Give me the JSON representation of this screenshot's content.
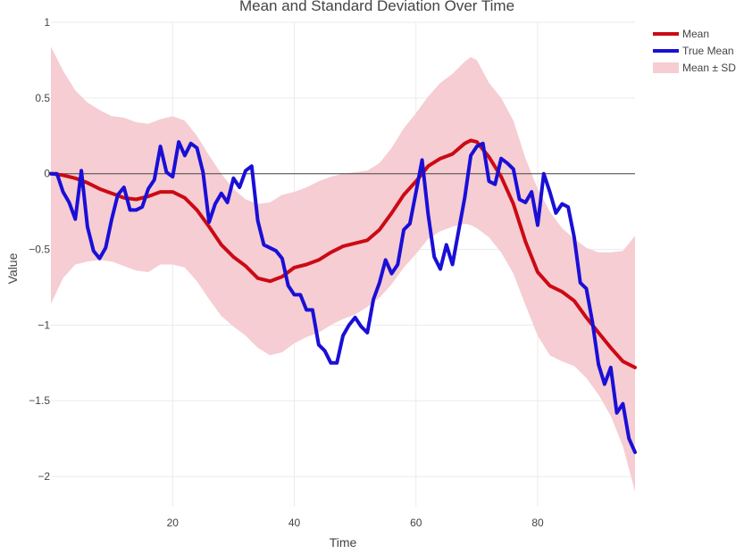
{
  "chart_data": {
    "type": "line",
    "title": "Mean and Standard Deviation Over Time",
    "xlabel": "Time",
    "ylabel": "Value",
    "xlim": [
      0,
      96
    ],
    "ylim": [
      -2.2,
      1.0
    ],
    "xticks": [
      20,
      40,
      60,
      80
    ],
    "yticks": [
      1,
      0.5,
      0,
      -0.5,
      -1,
      -1.5,
      -2
    ],
    "ytick_labels": [
      "1",
      "0.5",
      "0",
      "−0.5",
      "−1",
      "−1.5",
      "−2"
    ],
    "grid": true,
    "zero_line": true,
    "legend_position": "top-right",
    "colors": {
      "mean": "#cc0a14",
      "true_mean": "#1a0fd6",
      "band": "#f5cdd3",
      "grid": "#ebebeb",
      "text": "#444444"
    },
    "series": [
      {
        "name": "Mean",
        "x": [
          0,
          2,
          4,
          6,
          8,
          10,
          12,
          14,
          16,
          18,
          20,
          22,
          24,
          26,
          28,
          30,
          32,
          34,
          36,
          38,
          40,
          42,
          44,
          46,
          48,
          50,
          52,
          54,
          56,
          58,
          60,
          62,
          64,
          66,
          68,
          69,
          70,
          72,
          74,
          76,
          78,
          80,
          82,
          84,
          86,
          88,
          90,
          92,
          94,
          96
        ],
        "values": [
          0,
          -0.01,
          -0.03,
          -0.06,
          -0.1,
          -0.13,
          -0.16,
          -0.17,
          -0.15,
          -0.12,
          -0.12,
          -0.16,
          -0.24,
          -0.35,
          -0.47,
          -0.55,
          -0.61,
          -0.69,
          -0.71,
          -0.68,
          -0.62,
          -0.6,
          -0.57,
          -0.52,
          -0.48,
          -0.46,
          -0.44,
          -0.37,
          -0.26,
          -0.14,
          -0.05,
          0.05,
          0.1,
          0.13,
          0.2,
          0.22,
          0.21,
          0.11,
          -0.02,
          -0.2,
          -0.45,
          -0.65,
          -0.74,
          -0.78,
          -0.84,
          -0.95,
          -1.05,
          -1.15,
          -1.24,
          -1.28
        ]
      },
      {
        "name": "True Mean",
        "x": [
          0,
          1,
          2,
          3,
          4,
          5,
          6,
          7,
          8,
          9,
          10,
          11,
          12,
          13,
          14,
          15,
          16,
          17,
          18,
          19,
          20,
          21,
          22,
          23,
          24,
          25,
          26,
          27,
          28,
          29,
          30,
          31,
          32,
          33,
          34,
          35,
          36,
          37,
          38,
          39,
          40,
          41,
          42,
          43,
          44,
          45,
          46,
          47,
          48,
          49,
          50,
          51,
          52,
          53,
          54,
          55,
          56,
          57,
          58,
          59,
          60,
          61,
          62,
          63,
          64,
          65,
          66,
          67,
          68,
          69,
          70,
          71,
          72,
          73,
          74,
          75,
          76,
          77,
          78,
          79,
          80,
          81,
          82,
          83,
          84,
          85,
          86,
          87,
          88,
          89,
          90,
          91,
          92,
          93,
          94,
          95,
          96
        ],
        "values": [
          0,
          0,
          -0.12,
          -0.19,
          -0.3,
          0.02,
          -0.35,
          -0.51,
          -0.56,
          -0.49,
          -0.3,
          -0.14,
          -0.09,
          -0.24,
          -0.24,
          -0.22,
          -0.1,
          -0.04,
          0.18,
          0.01,
          -0.02,
          0.21,
          0.12,
          0.2,
          0.17,
          0.01,
          -0.32,
          -0.2,
          -0.13,
          -0.19,
          -0.03,
          -0.09,
          0.02,
          0.05,
          -0.31,
          -0.47,
          -0.49,
          -0.51,
          -0.56,
          -0.74,
          -0.8,
          -0.8,
          -0.9,
          -0.9,
          -1.13,
          -1.17,
          -1.25,
          -1.25,
          -1.07,
          -1.0,
          -0.95,
          -1.01,
          -1.05,
          -0.83,
          -0.72,
          -0.57,
          -0.66,
          -0.6,
          -0.37,
          -0.33,
          -0.12,
          0.09,
          -0.27,
          -0.55,
          -0.63,
          -0.47,
          -0.6,
          -0.38,
          -0.16,
          0.12,
          0.18,
          0.2,
          -0.05,
          -0.07,
          0.1,
          0.07,
          0.03,
          -0.17,
          -0.19,
          -0.12,
          -0.34,
          0.0,
          -0.12,
          -0.26,
          -0.2,
          -0.22,
          -0.42,
          -0.72,
          -0.76,
          -0.98,
          -1.26,
          -1.39,
          -1.28,
          -1.58,
          -1.52,
          -1.75,
          -1.84
        ]
      },
      {
        "name": "Mean ± SD",
        "x": [
          0,
          2,
          4,
          6,
          8,
          10,
          12,
          14,
          16,
          18,
          20,
          22,
          24,
          26,
          28,
          30,
          32,
          34,
          36,
          38,
          40,
          42,
          44,
          46,
          48,
          50,
          52,
          54,
          56,
          58,
          60,
          62,
          64,
          66,
          68,
          69,
          70,
          72,
          74,
          76,
          78,
          80,
          82,
          84,
          86,
          88,
          90,
          92,
          94,
          96
        ],
        "upper": [
          0.84,
          0.68,
          0.55,
          0.47,
          0.42,
          0.38,
          0.37,
          0.34,
          0.33,
          0.36,
          0.38,
          0.35,
          0.25,
          0.12,
          0.0,
          -0.1,
          -0.17,
          -0.2,
          -0.19,
          -0.14,
          -0.12,
          -0.09,
          -0.05,
          -0.02,
          0.0,
          0.01,
          0.02,
          0.07,
          0.17,
          0.3,
          0.4,
          0.51,
          0.6,
          0.66,
          0.74,
          0.77,
          0.75,
          0.6,
          0.5,
          0.35,
          0.1,
          -0.1,
          -0.25,
          -0.36,
          -0.43,
          -0.49,
          -0.52,
          -0.52,
          -0.51,
          -0.41
        ],
        "lower": [
          -0.86,
          -0.69,
          -0.6,
          -0.58,
          -0.57,
          -0.58,
          -0.61,
          -0.64,
          -0.65,
          -0.6,
          -0.6,
          -0.62,
          -0.71,
          -0.83,
          -0.94,
          -1.01,
          -1.07,
          -1.15,
          -1.2,
          -1.18,
          -1.12,
          -1.08,
          -1.05,
          -1.0,
          -0.96,
          -0.93,
          -0.88,
          -0.82,
          -0.73,
          -0.62,
          -0.53,
          -0.43,
          -0.38,
          -0.35,
          -0.33,
          -0.34,
          -0.36,
          -0.42,
          -0.52,
          -0.66,
          -0.87,
          -1.07,
          -1.2,
          -1.24,
          -1.27,
          -1.35,
          -1.46,
          -1.6,
          -1.8,
          -2.1
        ]
      }
    ]
  }
}
